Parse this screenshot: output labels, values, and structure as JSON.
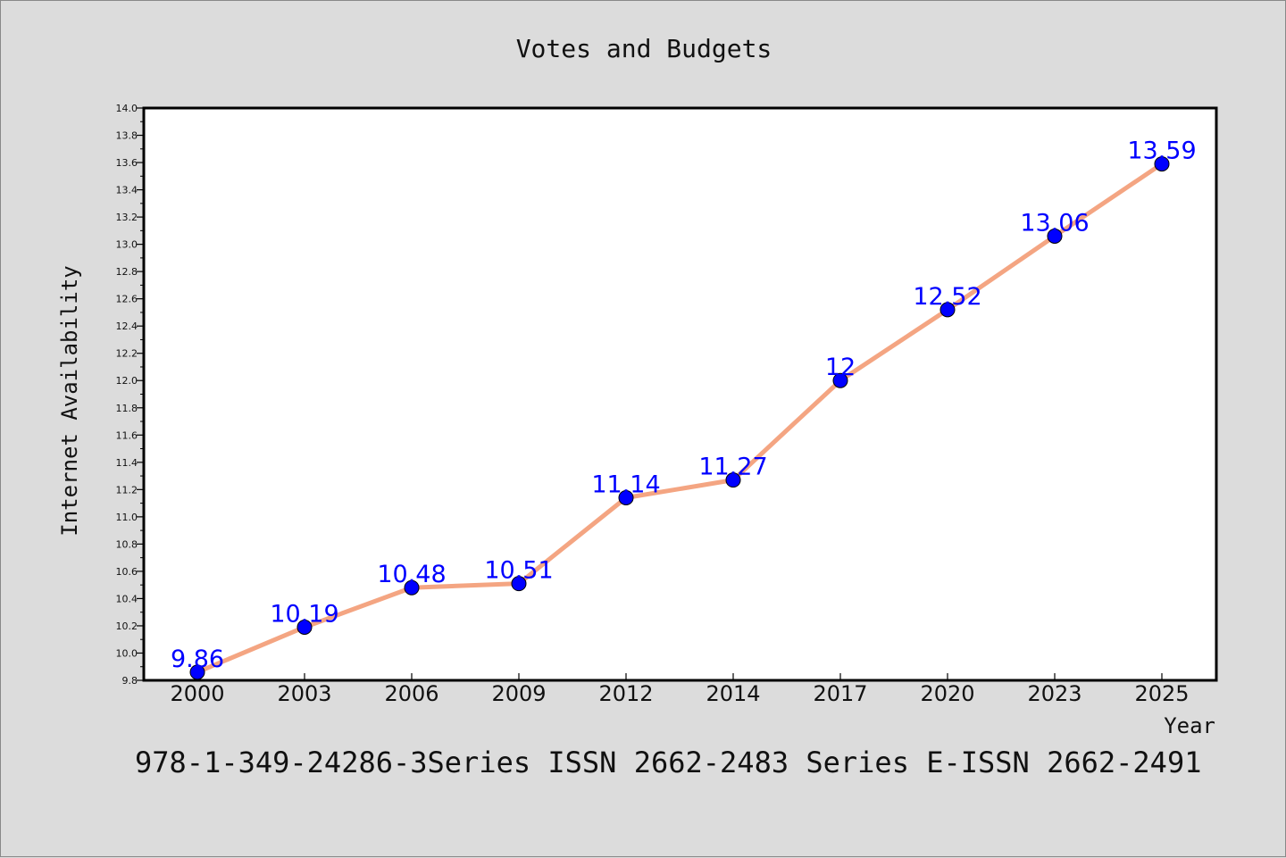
{
  "chart_data": {
    "type": "line",
    "title": "Votes and Budgets",
    "xlabel": "Year",
    "ylabel": "Internet Availability",
    "categories": [
      "2000",
      "2003",
      "2006",
      "2009",
      "2012",
      "2014",
      "2017",
      "2020",
      "2023",
      "2025"
    ],
    "series": [
      {
        "values": [
          9.86,
          10.19,
          10.48,
          10.51,
          11.14,
          11.27,
          12,
          12.52,
          13.06,
          13.59
        ],
        "data_labels": [
          "9.86",
          "10.19",
          "10.48",
          "10.51",
          "11.14",
          "11.27",
          "12",
          "12.52",
          "13.06",
          "13.59"
        ],
        "line_color": "#f4a582",
        "marker_color": "#0000ff"
      }
    ],
    "ylim": [
      9.8,
      14.0
    ],
    "yticks": [
      "9.8",
      "10.0",
      "10.2",
      "10.4",
      "10.6",
      "10.8",
      "11.0",
      "11.2",
      "11.4",
      "11.6",
      "11.8",
      "12.0",
      "12.2",
      "12.4",
      "12.6",
      "12.8",
      "13.0",
      "13.2",
      "13.4",
      "13.6",
      "13.8",
      "14.0"
    ],
    "grid": false,
    "legend": "none"
  },
  "footer": {
    "text": "978-1-349-24286-3Series ISSN 2662-2483 Series E-ISSN 2662-2491"
  }
}
